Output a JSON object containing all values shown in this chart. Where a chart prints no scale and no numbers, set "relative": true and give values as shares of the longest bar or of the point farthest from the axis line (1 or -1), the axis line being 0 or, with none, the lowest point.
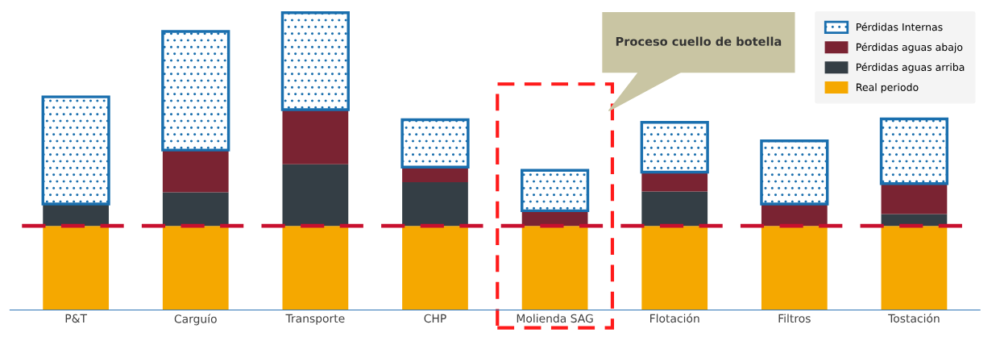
{
  "chart_data": {
    "type": "bar",
    "stacked": true,
    "relative": true,
    "categories": [
      "P&T",
      "Carguío",
      "Transporte",
      "CHP",
      "Molienda SAG",
      "Flotación",
      "Filtros",
      "Tostación"
    ],
    "series": [
      {
        "name": "Real periodo",
        "color": "#f5a800",
        "values": [
          0.283,
          0.283,
          0.283,
          0.283,
          0.283,
          0.283,
          0.283,
          0.283
        ]
      },
      {
        "name": "Pérdidas aguas arriba",
        "color": "#343e45",
        "values": [
          0.074,
          0.113,
          0.207,
          0.147,
          0,
          0.116,
          0,
          0.04
        ]
      },
      {
        "name": "Pérdidas aguas abajo",
        "color": "#7a2332",
        "values": [
          0,
          0.142,
          0.184,
          0.051,
          0.051,
          0.065,
          0.074,
          0.102
        ]
      },
      {
        "name": "Pérdidas Internas",
        "color": "#1a6fae",
        "values": [
          0.36,
          0.399,
          0.326,
          0.159,
          0.136,
          0.167,
          0.212,
          0.218
        ]
      }
    ],
    "ref_lines": [
      {
        "axis": "y",
        "value": 0.283,
        "color": "#c8102e",
        "line_style": "dashed"
      }
    ],
    "annotations": [
      "Proceso cuello de botella"
    ],
    "legend": "top right",
    "grid": false
  }
}
